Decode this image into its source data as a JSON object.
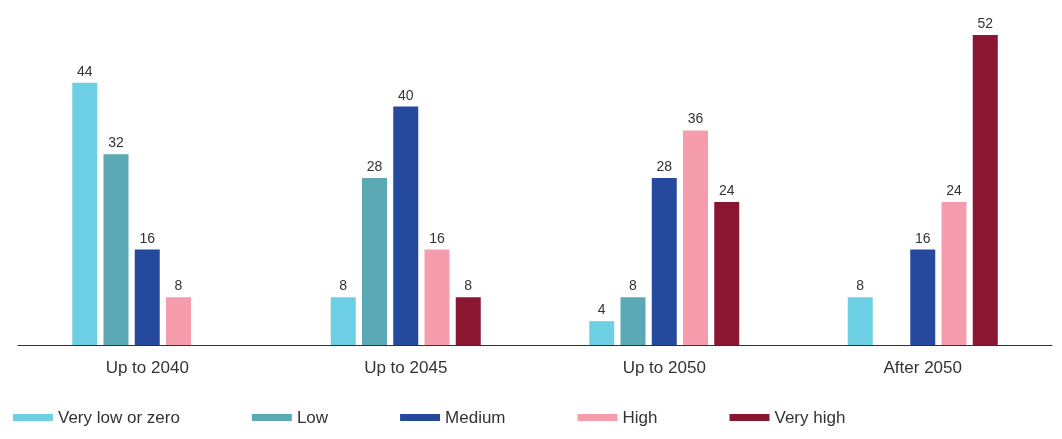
{
  "chart_data": {
    "type": "bar",
    "categories": [
      "Up to 2040",
      "Up to 2045",
      "Up to 2050",
      "After 2050"
    ],
    "series": [
      {
        "name": "Very low or zero",
        "color": "#6dcfe3",
        "values": [
          44,
          8,
          4,
          8
        ]
      },
      {
        "name": "Low",
        "color": "#5aa9b5",
        "values": [
          32,
          28,
          8,
          null
        ]
      },
      {
        "name": "Medium",
        "color": "#25499d",
        "values": [
          16,
          40,
          28,
          16
        ]
      },
      {
        "name": "High",
        "color": "#f59dac",
        "values": [
          8,
          16,
          36,
          24
        ]
      },
      {
        "name": "Very high",
        "color": "#8a1631",
        "values": [
          null,
          8,
          24,
          52
        ]
      }
    ],
    "data_labels": true,
    "legend": "bottom left",
    "grid": false
  }
}
